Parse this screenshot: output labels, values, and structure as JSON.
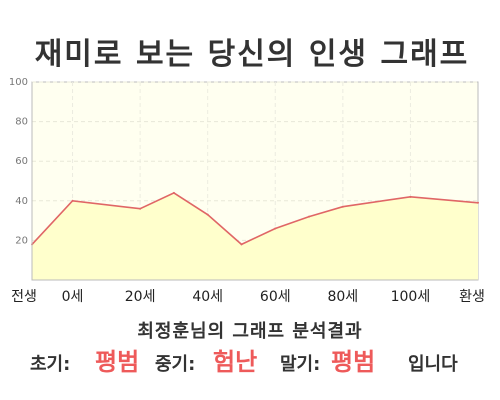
{
  "chart_data": {
    "type": "area",
    "title": "재미로 보는 당신의 인생 그래프",
    "x": [
      -12,
      0,
      20,
      30,
      40,
      50,
      60,
      70,
      80,
      100,
      120
    ],
    "values": [
      18,
      40,
      36,
      44,
      33,
      18,
      26,
      32,
      37,
      42,
      39
    ],
    "ylim": [
      0,
      100
    ],
    "y_ticks": [
      "20",
      "40",
      "60",
      "80",
      "100"
    ],
    "x_tick_labels": [
      "전생",
      "0세",
      "20세",
      "40세",
      "60세",
      "80세",
      "100세",
      "환생"
    ],
    "grid": true,
    "colors": {
      "line": "#e06666",
      "fill": "#ffffcc",
      "plot_bg": "#fffff0",
      "value_text": "#ee5a5a"
    }
  },
  "summary": {
    "title": "최정훈님의 그래프 분석결과",
    "early_label": "초기:",
    "early_value": "평범",
    "middle_label": "중기:",
    "middle_value": "험난",
    "late_label": "말기:",
    "late_value": "평범",
    "ending": "입니다"
  }
}
